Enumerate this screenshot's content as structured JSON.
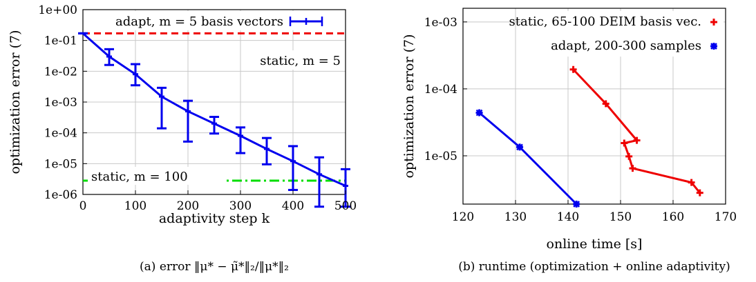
{
  "chart_data": [
    {
      "type": "line",
      "panel": "a",
      "caption": "(a) error ‖μ* − μ̃*‖₂/‖μ*‖₂",
      "xlabel": "adaptivity step k",
      "ylabel": "optimization error (7)",
      "xlim": [
        0,
        500
      ],
      "ylim": [
        1e-06,
        1
      ],
      "yscale": "log",
      "xticks": [
        0,
        100,
        200,
        300,
        400,
        500
      ],
      "yticks": [
        1e-06,
        1e-05,
        0.0001,
        0.001,
        0.01,
        0.1,
        1
      ],
      "ytick_labels": [
        "1e-06",
        "1e-05",
        "1e-04",
        "1e-03",
        "1e-02",
        "1e-01",
        "1e+00"
      ],
      "grid": true,
      "legend_position": "top-right",
      "series": [
        {
          "name": "adapt, m = 5 basis vectors",
          "color": "#0000ee",
          "style": "line-errorbar",
          "x": [
            0,
            50,
            100,
            150,
            200,
            250,
            300,
            350,
            400,
            450,
            500
          ],
          "y": [
            0.17,
            0.03,
            0.008,
            0.0015,
            0.0005,
            0.0002,
            8e-05,
            3e-05,
            1.2e-05,
            4.5e-06,
            1.9e-06
          ],
          "err_low": [
            0.17,
            0.016,
            0.0035,
            0.00014,
            5.2e-05,
            9.5e-05,
            2.2e-05,
            9.5e-06,
            1.4e-06,
            4e-07,
            4e-07
          ],
          "err_high": [
            0.17,
            0.052,
            0.017,
            0.0029,
            0.0011,
            0.00033,
            0.00015,
            6.8e-05,
            3.7e-05,
            1.6e-05,
            6.6e-06
          ]
        },
        {
          "name": "static, m = 5",
          "color": "#ee0000",
          "style": "dashed",
          "y_const": 0.17
        },
        {
          "name": "static, m = 100",
          "color": "#00dd00",
          "style": "dashdot",
          "y_const": 2.8e-06
        }
      ]
    },
    {
      "type": "line",
      "panel": "b",
      "caption": "(b) runtime (optimization + online adaptivity)",
      "xlabel": "online time [s]",
      "ylabel": "optimization error (7)",
      "xlim": [
        120,
        170
      ],
      "ylim": [
        1.9e-06,
        0.0016
      ],
      "yscale": "log",
      "xticks": [
        120,
        130,
        140,
        150,
        160,
        170
      ],
      "yticks": [
        1e-05,
        0.0001,
        0.001
      ],
      "ytick_labels": [
        "1e-05",
        "1e-04",
        "1e-03"
      ],
      "grid": true,
      "legend_position": "top-right",
      "series": [
        {
          "name": "static, 65-100 DEIM basis vec.",
          "color": "#ee0000",
          "marker": "plus",
          "x": [
            141,
            147.2,
            153.1,
            150.7,
            151.6,
            152.3,
            163.5,
            165.1
          ],
          "y": [
            0.000195,
            6e-05,
            1.7e-05,
            1.55e-05,
            9.8e-06,
            6.5e-06,
            4e-06,
            2.8e-06
          ]
        },
        {
          "name": "adapt, 200-300 samples",
          "color": "#0000ee",
          "marker": "star",
          "x": [
            123.1,
            130.8,
            141.6
          ],
          "y": [
            4.4e-05,
            1.35e-05,
            1.9e-06
          ]
        }
      ]
    }
  ]
}
